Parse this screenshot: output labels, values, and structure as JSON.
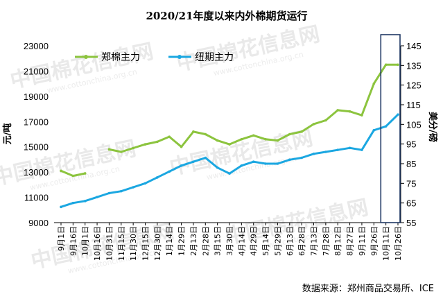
{
  "chart_data": {
    "type": "line",
    "title": "2020/21年度以来内外棉期货运行",
    "ylabel_left": "元/吨",
    "ylabel_right": "美分/磅",
    "yticks_left": [
      "23000",
      "21000",
      "19000",
      "17000",
      "15000",
      "13000",
      "11000",
      "9000"
    ],
    "yticks_right": [
      "145",
      "135",
      "125",
      "115",
      "105",
      "95",
      "85",
      "75",
      "65",
      "55"
    ],
    "ylim_left": [
      9000,
      23000
    ],
    "ylim_right": [
      55,
      145
    ],
    "grid": false,
    "legend_position": "top-left",
    "source": "数据来源：郑州商品交易所、ICE",
    "watermark": "中国棉花信息网",
    "watermark_url": "www.cottonchina.org.cn",
    "categories": [
      "9月1日",
      "9月16日",
      "10月1日",
      "10月16日",
      "10月31日",
      "11月15日",
      "11月30日",
      "12月15日",
      "12月30日",
      "1月14日",
      "1月29日",
      "2月13日",
      "2月28日",
      "3月15日",
      "3月30日",
      "4月14日",
      "4月29日",
      "5月14日",
      "5月29日",
      "6月13日",
      "6月28日",
      "7月13日",
      "7月28日",
      "8月12日",
      "8月27日",
      "9月11日",
      "9月26日",
      "10月11日",
      "10月26日"
    ],
    "highlight_box": {
      "from_category": "9月26日",
      "to_category": "10月26日",
      "color": "#1f3864"
    },
    "series": [
      {
        "name": "郑棉主力",
        "axis": "left",
        "color": "#8cc43e",
        "values": [
          13100,
          12700,
          12900,
          null,
          14800,
          14600,
          14900,
          15200,
          15400,
          15800,
          15000,
          16200,
          16000,
          15500,
          15200,
          15600,
          15900,
          15600,
          15500,
          16000,
          16200,
          16800,
          17100,
          17900,
          17800,
          17500,
          20000,
          21500,
          21500
        ]
      },
      {
        "name": "纽期主力",
        "axis": "right",
        "color": "#1ba7e1",
        "values": [
          63,
          65,
          66,
          68,
          70,
          71,
          73,
          75,
          78,
          81,
          84,
          86,
          88,
          83,
          80,
          84,
          86,
          85,
          85,
          87,
          88,
          90,
          91,
          92,
          93,
          92,
          102,
          104,
          110
        ]
      }
    ]
  }
}
